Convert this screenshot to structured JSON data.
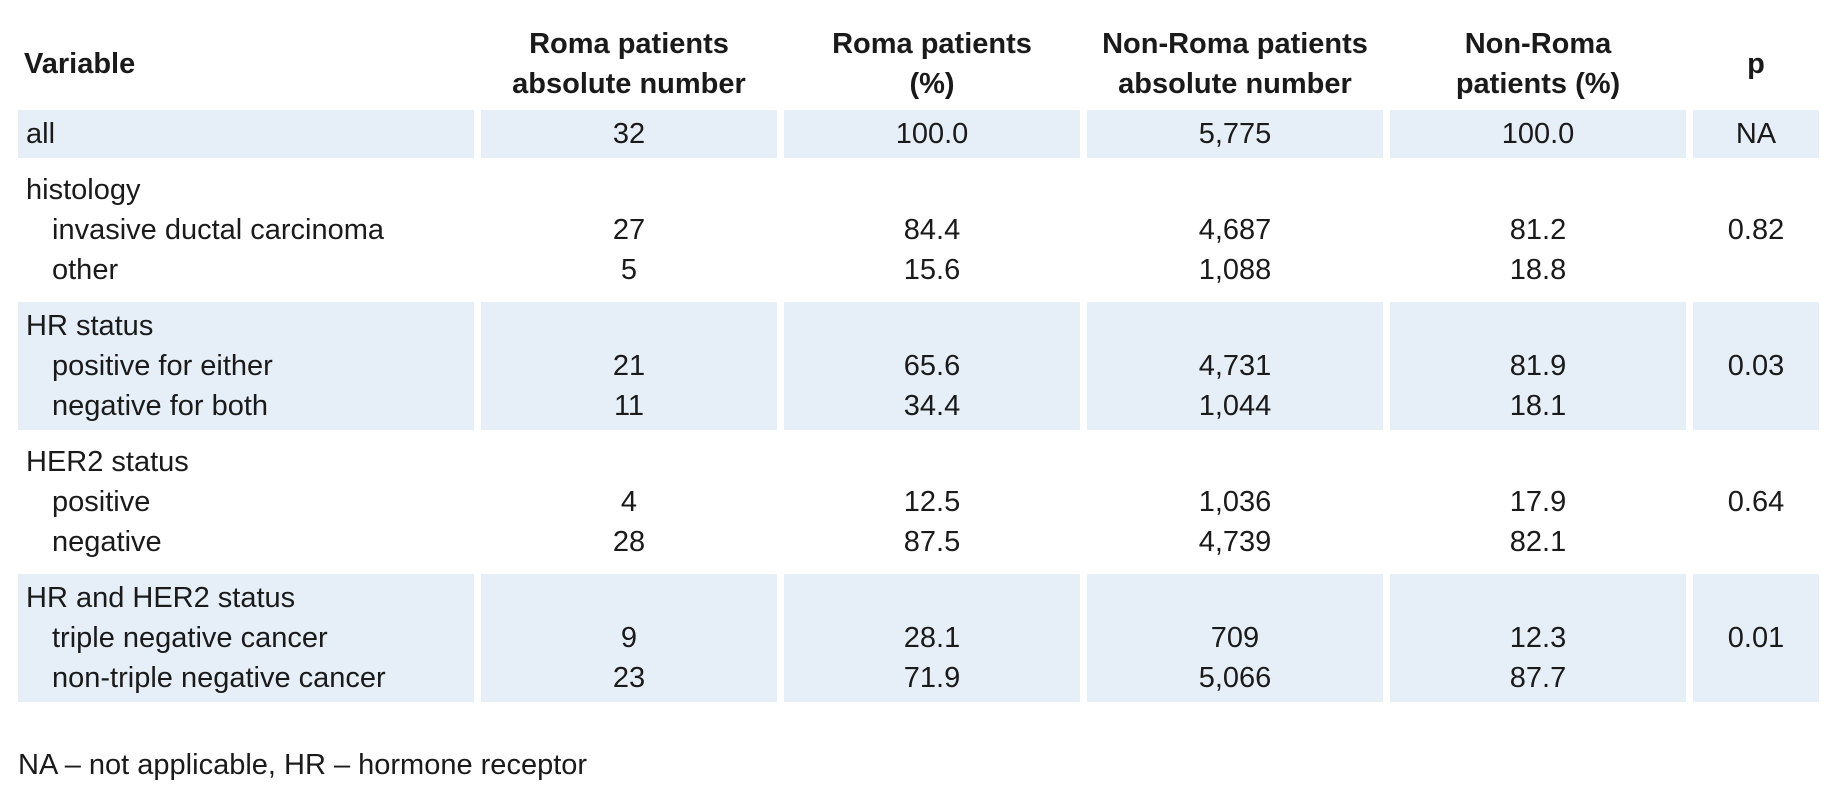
{
  "table": {
    "headers": [
      [
        "Variable"
      ],
      [
        "Roma patients",
        "absolute number"
      ],
      [
        "Roma patients",
        "(%)"
      ],
      [
        "Non-Roma patients",
        "absolute number"
      ],
      [
        "Non-Roma",
        "patients (%)"
      ],
      [
        "p"
      ]
    ],
    "groups": [
      {
        "label": "",
        "rows": [
          {
            "label": "all",
            "roma_n": "32",
            "roma_pct": "100.0",
            "nonroma_n": "5,775",
            "nonroma_pct": "100.0"
          }
        ],
        "p": "NA",
        "shaded": true
      },
      {
        "label": "histology",
        "rows": [
          {
            "label": "invasive ductal carcinoma",
            "roma_n": "27",
            "roma_pct": "84.4",
            "nonroma_n": "4,687",
            "nonroma_pct": "81.2"
          },
          {
            "label": "other",
            "roma_n": "5",
            "roma_pct": "15.6",
            "nonroma_n": "1,088",
            "nonroma_pct": "18.8"
          }
        ],
        "p": "0.82",
        "shaded": false
      },
      {
        "label": "HR status",
        "rows": [
          {
            "label": "positive for either",
            "roma_n": "21",
            "roma_pct": "65.6",
            "nonroma_n": "4,731",
            "nonroma_pct": "81.9"
          },
          {
            "label": "negative for both",
            "roma_n": "11",
            "roma_pct": "34.4",
            "nonroma_n": "1,044",
            "nonroma_pct": "18.1"
          }
        ],
        "p": "0.03",
        "shaded": true
      },
      {
        "label": "HER2 status",
        "rows": [
          {
            "label": "positive",
            "roma_n": "4",
            "roma_pct": "12.5",
            "nonroma_n": "1,036",
            "nonroma_pct": "17.9"
          },
          {
            "label": "negative",
            "roma_n": "28",
            "roma_pct": "87.5",
            "nonroma_n": "4,739",
            "nonroma_pct": "82.1"
          }
        ],
        "p": "0.64",
        "shaded": false
      },
      {
        "label": "HR and HER2 status",
        "rows": [
          {
            "label": "triple negative cancer",
            "roma_n": "9",
            "roma_pct": "28.1",
            "nonroma_n": "709",
            "nonroma_pct": "12.3"
          },
          {
            "label": "non-triple negative cancer",
            "roma_n": "23",
            "roma_pct": "71.9",
            "nonroma_n": "5,066",
            "nonroma_pct": "87.7"
          }
        ],
        "p": "0.01",
        "shaded": true
      }
    ]
  },
  "footnote": "NA – not applicable, HR – hormone receptor",
  "colors": {
    "row_shade": "#e6eef8",
    "text": "#1a1a1a"
  }
}
